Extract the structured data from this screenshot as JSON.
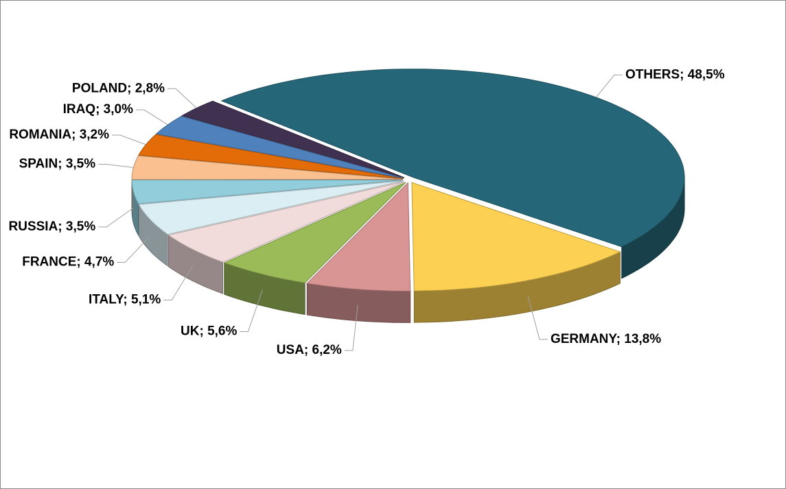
{
  "chart_data": {
    "type": "pie",
    "values": [
      48.5,
      13.8,
      6.2,
      5.6,
      5.1,
      4.7,
      3.5,
      3.5,
      3.2,
      3.0,
      2.8
    ],
    "value_labels": [
      "OTHERS; 48,5%",
      "GERMANY; 13,8%",
      "USA; 6,2%",
      "UK; 5,6%",
      "ITALY; 5,1%",
      "FRANCE; 4,7%",
      "RUSSIA; 3,5%",
      "SPAIN; 3,5%",
      "ROMANIA; 3,2%",
      "IRAQ; 3,0%",
      "POLAND; 2,8%"
    ],
    "colors": [
      "#256779",
      "#fcd052",
      "#d99594",
      "#9bbb59",
      "#f2dcdb",
      "#dbeef3",
      "#92cddc",
      "#fac090",
      "#e36c09",
      "#4f81bd",
      "#403151"
    ]
  }
}
